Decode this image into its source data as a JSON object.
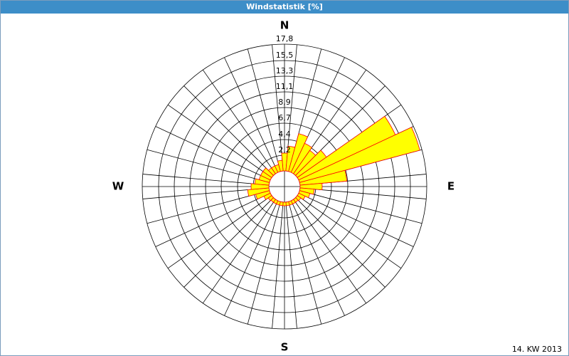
{
  "chart_data": {
    "type": "windrose",
    "title": "Windstatistik [%]",
    "footnote": "14. KW 2013",
    "x": [
      0,
      10,
      20,
      30,
      40,
      50,
      60,
      70,
      80,
      90,
      100,
      110,
      120,
      130,
      140,
      150,
      160,
      170,
      180,
      190,
      200,
      210,
      220,
      230,
      240,
      250,
      260,
      270,
      280,
      290,
      300,
      310,
      320,
      330,
      340,
      350
    ],
    "xlim": [
      0,
      360
    ],
    "compass": [
      {
        "value": 0,
        "label": "N"
      },
      {
        "value": 90,
        "label": "E"
      },
      {
        "value": 180,
        "label": "S"
      },
      {
        "value": 270,
        "label": "W"
      }
    ],
    "values": [
      2.5,
      3.5,
      5.5,
      4.5,
      4,
      5,
      15,
      17.5,
      6.6,
      3.1,
      2,
      1.5,
      1,
      0.6,
      0.5,
      0.5,
      0.5,
      0.5,
      0.5,
      0.5,
      0.5,
      0.5,
      0.5,
      0.6,
      1,
      2,
      3,
      2.5,
      2,
      1.5,
      1.5,
      1.5,
      1,
      1,
      1,
      1.5
    ],
    "color": "#ffff00",
    "edge_color": "#ff0000",
    "ylim": [
      0,
      17.8
    ],
    "yticks": [
      {
        "value": 2.2,
        "label": "2,2"
      },
      {
        "value": 4.4,
        "label": "4,4"
      },
      {
        "value": 6.7,
        "label": "6,7"
      },
      {
        "value": 8.9,
        "label": "8,9"
      },
      {
        "value": 11.1,
        "label": "11,1"
      },
      {
        "value": 13.3,
        "label": "13,3"
      },
      {
        "value": 15.5,
        "label": "15,5"
      },
      {
        "value": 17.8,
        "label": "17,8"
      }
    ],
    "grid": true
  }
}
